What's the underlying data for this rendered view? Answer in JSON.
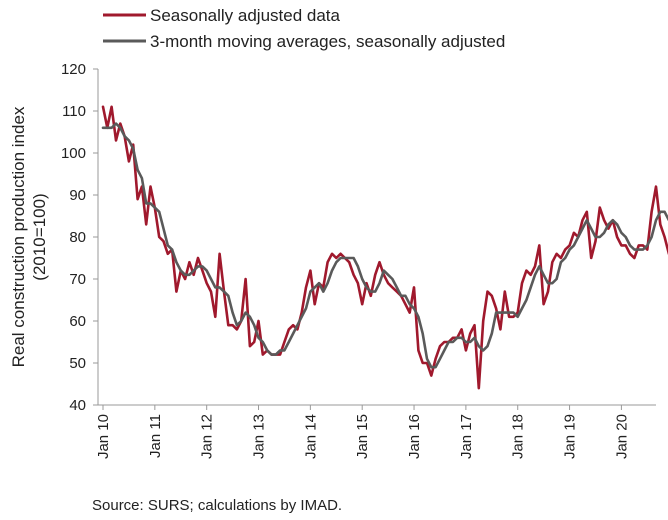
{
  "chart_data": {
    "type": "line",
    "ylabel_line1": "Real construction production index",
    "ylabel_line2": "(2010=100)",
    "ylim": [
      40,
      120
    ],
    "yticks": [
      40,
      50,
      60,
      70,
      80,
      90,
      100,
      110,
      120
    ],
    "xlabels": [
      "Jan 10",
      "Jan 11",
      "Jan 12",
      "Jan 13",
      "Jan 14",
      "Jan 15",
      "Jan 16",
      "Jan 17",
      "Jan 18",
      "Jan 19",
      "Jan 20"
    ],
    "x_start": "Jan 2010",
    "x_end": "Apr 2020",
    "grid": false,
    "legend_position": "top-left",
    "source": "Source: SURS; calculations by IMAD.",
    "series": [
      {
        "name": "Seasonally adjusted data",
        "color": "#a0192d",
        "values": [
          111,
          106,
          111,
          103,
          107,
          104,
          98,
          102,
          89,
          92,
          83,
          92,
          87,
          80,
          79,
          76,
          77,
          67,
          72,
          70,
          74,
          71,
          75,
          72,
          69,
          67,
          61,
          76,
          67,
          59,
          59,
          58,
          60,
          70,
          54,
          55,
          60,
          52,
          53,
          52,
          52,
          52,
          55,
          58,
          59,
          58,
          62,
          68,
          72,
          64,
          69,
          68,
          74,
          76,
          75,
          76,
          75,
          74,
          71,
          69,
          64,
          69,
          66,
          71,
          74,
          71,
          69,
          68,
          67,
          66,
          64,
          62,
          68,
          53,
          50,
          50,
          47,
          51,
          54,
          55,
          55,
          56,
          56,
          58,
          53,
          57,
          59,
          44,
          60,
          67,
          66,
          63,
          58,
          67,
          61,
          61,
          62,
          69,
          72,
          71,
          73,
          78,
          64,
          67,
          74,
          76,
          75,
          77,
          78,
          81,
          80,
          84,
          86,
          75,
          79,
          87,
          84,
          82,
          84,
          80,
          78,
          78,
          76,
          75,
          78,
          78,
          77,
          86,
          92,
          83,
          80,
          76
        ],
        "draw": [
          {
            "label": "Seasonally adjusted data",
            "color": "#a0192d"
          }
        ]
      },
      {
        "name": "3-month moving averages, seasonally adjusted",
        "color": "#5a5a5a",
        "values": [
          106,
          106,
          106,
          107,
          106,
          104,
          103,
          101,
          96,
          94,
          88,
          88,
          87,
          86,
          82,
          78,
          77,
          74,
          72,
          71,
          71,
          72,
          73,
          73,
          72,
          70,
          68,
          68,
          67,
          66,
          62,
          59,
          60,
          62,
          61,
          59,
          56,
          55,
          53,
          52,
          52,
          53,
          53,
          55,
          57,
          59,
          61,
          63,
          67,
          68,
          69,
          67,
          69,
          72,
          74,
          75,
          75,
          75,
          75,
          73,
          70,
          68,
          67,
          67,
          69,
          72,
          71,
          70,
          68,
          66,
          66,
          64,
          63,
          61,
          57,
          51,
          49,
          49,
          51,
          53,
          55,
          55,
          56,
          56,
          55,
          55,
          56,
          54,
          53,
          54,
          57,
          62,
          62,
          62,
          62,
          62,
          61,
          63,
          65,
          68,
          71,
          73,
          71,
          69,
          69,
          70,
          74,
          75,
          77,
          78,
          80,
          82,
          84,
          82,
          80,
          80,
          81,
          83,
          84,
          83,
          81,
          80,
          78,
          77,
          77,
          77,
          78,
          80,
          84,
          86,
          86,
          84
        ],
        "draw": [
          {
            "label": "3-month moving averages, seasonally adjusted",
            "color": "#5a5a5a"
          }
        ]
      }
    ]
  }
}
